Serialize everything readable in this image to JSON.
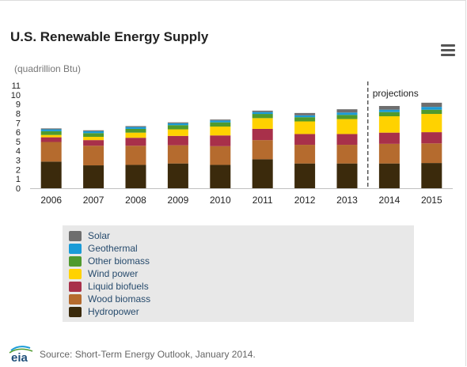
{
  "header": {
    "title": "U.S. Renewable Energy Supply",
    "units": "(quadrillion Btu)"
  },
  "menu": {
    "icon": "hamburger-menu-icon"
  },
  "chart_data": {
    "type": "bar",
    "stacked": true,
    "title": "U.S. Renewable Energy Supply",
    "ylabel": "(quadrillion Btu)",
    "xlabel": "",
    "ylim": [
      0,
      11
    ],
    "yticks": [
      0,
      1,
      2,
      3,
      4,
      5,
      6,
      7,
      8,
      9,
      10,
      11
    ],
    "categories": [
      "2006",
      "2007",
      "2008",
      "2009",
      "2010",
      "2011",
      "2012",
      "2013",
      "2014",
      "2015"
    ],
    "annotation": {
      "text": "projections",
      "after_category": "2013"
    },
    "grid": false,
    "legend": "bottom",
    "series": [
      {
        "name": "Hydropower",
        "color": "#3b2a0c",
        "values": [
          2.85,
          2.45,
          2.5,
          2.65,
          2.5,
          3.1,
          2.65,
          2.65,
          2.65,
          2.7
        ]
      },
      {
        "name": "Wood biomass",
        "color": "#b56b2e",
        "values": [
          2.1,
          2.1,
          2.05,
          1.95,
          2.0,
          2.05,
          2.0,
          2.0,
          2.1,
          2.1
        ]
      },
      {
        "name": "Liquid biofuels",
        "color": "#a8304a",
        "values": [
          0.5,
          0.6,
          0.85,
          1.0,
          1.15,
          1.2,
          1.15,
          1.15,
          1.2,
          1.2
        ]
      },
      {
        "name": "Wind power",
        "color": "#ffd200",
        "values": [
          0.25,
          0.35,
          0.55,
          0.7,
          0.95,
          1.15,
          1.35,
          1.6,
          1.75,
          1.95
        ]
      },
      {
        "name": "Other biomass",
        "color": "#4f9a2e",
        "values": [
          0.4,
          0.4,
          0.4,
          0.45,
          0.45,
          0.45,
          0.45,
          0.45,
          0.45,
          0.45
        ]
      },
      {
        "name": "Geothermal",
        "color": "#1a9bd7",
        "values": [
          0.2,
          0.2,
          0.2,
          0.2,
          0.2,
          0.2,
          0.2,
          0.25,
          0.25,
          0.3
        ]
      },
      {
        "name": "Solar",
        "color": "#6e6e6e",
        "values": [
          0.1,
          0.1,
          0.1,
          0.1,
          0.1,
          0.15,
          0.25,
          0.35,
          0.4,
          0.45
        ]
      }
    ]
  },
  "legend_items": [
    {
      "label": "Solar",
      "color": "#6e6e6e"
    },
    {
      "label": "Geothermal",
      "color": "#1a9bd7"
    },
    {
      "label": "Other biomass",
      "color": "#4f9a2e"
    },
    {
      "label": "Wind power",
      "color": "#ffd200"
    },
    {
      "label": "Liquid biofuels",
      "color": "#a8304a"
    },
    {
      "label": "Wood biomass",
      "color": "#b56b2e"
    },
    {
      "label": "Hydropower",
      "color": "#3b2a0c"
    }
  ],
  "footer": {
    "logo_text": "eia",
    "source": "Source: Short-Term Energy Outlook, January 2014."
  }
}
